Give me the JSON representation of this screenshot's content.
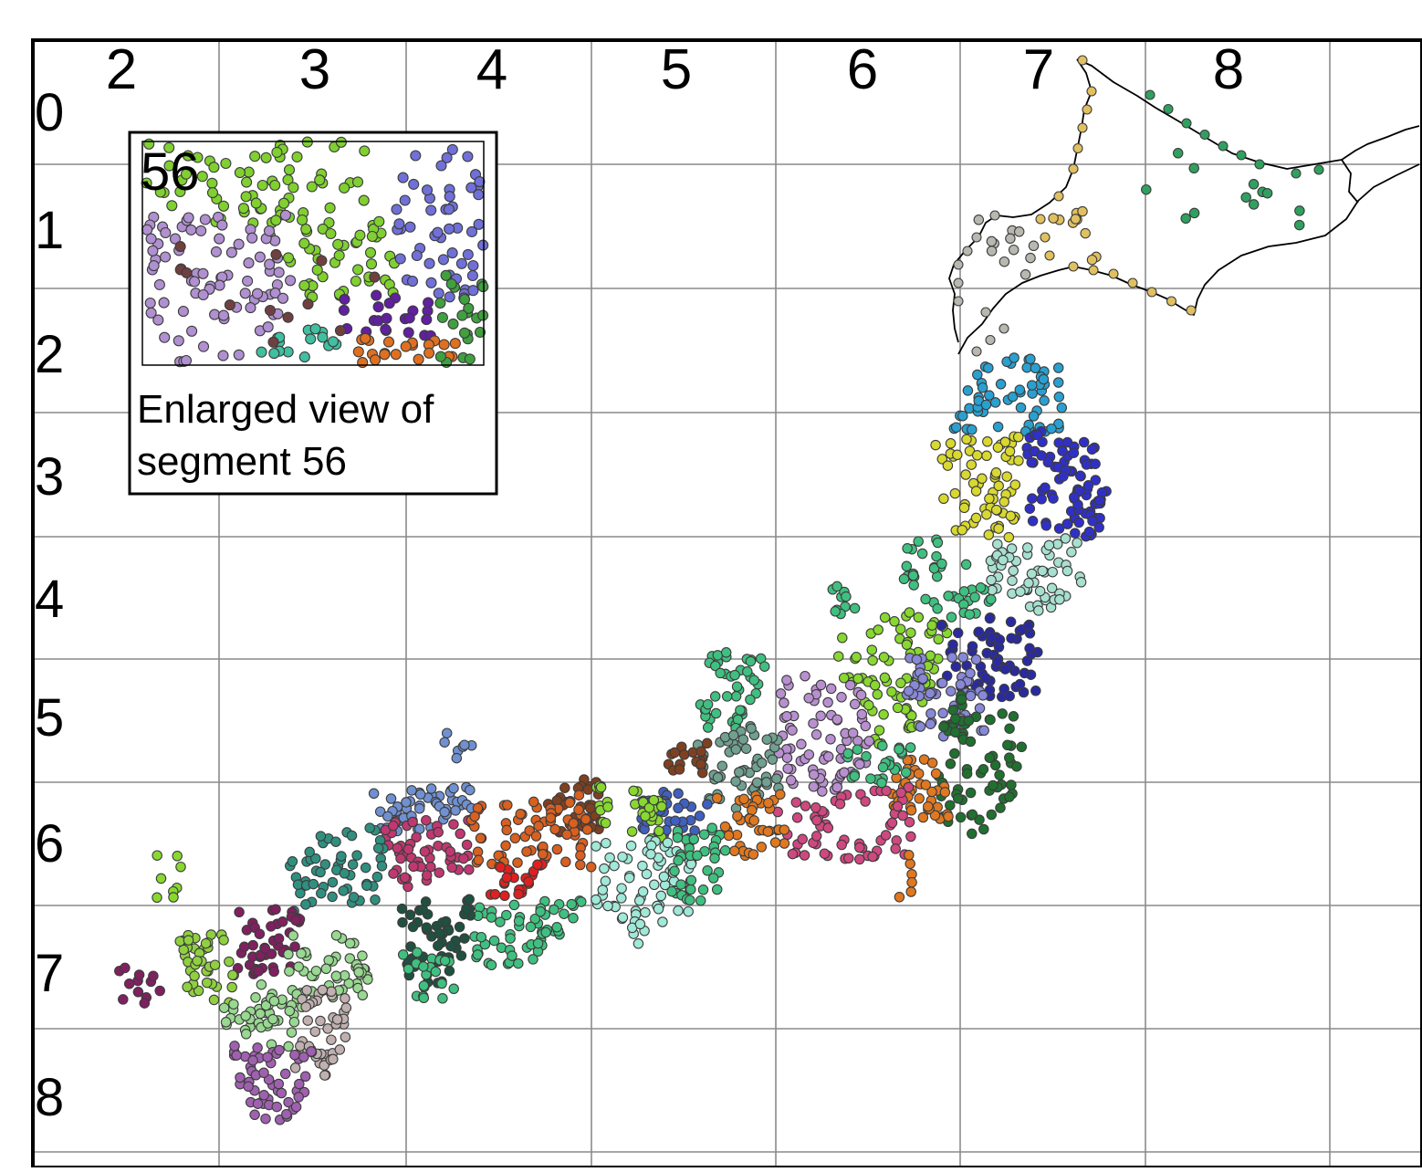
{
  "map": {
    "column_labels": [
      "2",
      "3",
      "4",
      "5",
      "6",
      "7",
      "8"
    ],
    "row_labels": [
      "0",
      "1",
      "2",
      "3",
      "4",
      "5",
      "6",
      "7",
      "8"
    ]
  },
  "inset": {
    "segment_label": "56",
    "caption_line1": "Enlarged view of",
    "caption_line2": "segment 56"
  },
  "cluster_colors": {
    "hokkaido_west": "#b8b8b0",
    "hokkaido_central": "#e0c060",
    "hokkaido_east": "#30a060",
    "tohoku_north": "#2aa0d0",
    "tohoku_yellow": "#d8d830",
    "tohoku_blue": "#3030c8",
    "tohoku_mint": "#a8e0d0",
    "tohoku_green": "#40c080",
    "chubu_lime": "#88d830",
    "kanto_navy": "#2a2aa0",
    "kanto_periwinkle": "#8888d8",
    "kanto_darkgreen": "#207030",
    "chubu_lavender": "#b890d0",
    "chubu_orange": "#e07820",
    "chubu_pink": "#d04880",
    "kinki_brown": "#804020",
    "kinki_teal": "#70a090",
    "kinki_mint": "#a0e8d8",
    "kinki_blue": "#4060c0",
    "chugoku_steel": "#7090d0",
    "chugoku_rose": "#c03870",
    "chugoku_orange": "#d86020",
    "chugoku_teal": "#309080",
    "shikoku_green": "#40c080",
    "shikoku_red": "#e02020",
    "shikoku_dark": "#205040",
    "kyushu_plum": "#802060",
    "kyushu_lime": "#90d040",
    "kyushu_lightgreen": "#98d890",
    "kyushu_silver": "#c0b0b0",
    "kyushu_purple": "#a060b0",
    "inset_lime": "#80d030",
    "inset_lavender": "#b090d0",
    "inset_blue": "#7070d8",
    "inset_purple": "#6020a0",
    "inset_orange": "#e07020",
    "inset_green": "#40a040",
    "inset_teal": "#40c0a0",
    "inset_brown": "#704040"
  }
}
